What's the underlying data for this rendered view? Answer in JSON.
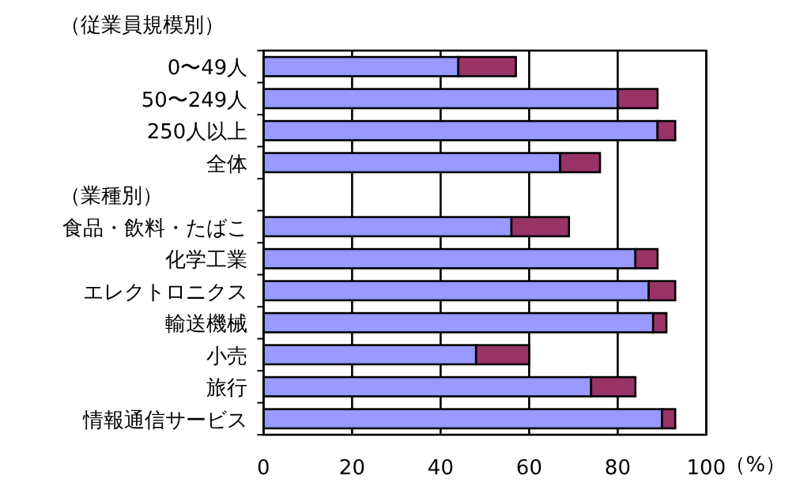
{
  "chart_data": {
    "type": "bar",
    "orientation": "horizontal",
    "stacked": true,
    "categories": [
      "0〜49人",
      "50〜249人",
      "250人以上",
      "全体",
      null,
      "食品・飲料・たばこ",
      "化学工業",
      "エレクトロニクス",
      "輸送機械",
      "小売",
      "旅行",
      "情報通信サービス"
    ],
    "series": [
      {
        "color": "#9999ff",
        "values": [
          44,
          80,
          89,
          67,
          null,
          56,
          84,
          87,
          88,
          48,
          74,
          90
        ]
      },
      {
        "color": "#993366",
        "values": [
          13,
          9,
          4,
          9,
          null,
          13,
          5,
          6,
          3,
          12,
          10,
          3
        ]
      }
    ],
    "xlim": [
      0,
      100
    ],
    "xticks": [
      0,
      20,
      40,
      60,
      80,
      100
    ],
    "xlabel": "（%）",
    "grid": "x",
    "annotations": [
      "（従業員規模別）",
      "（業種別）"
    ]
  }
}
